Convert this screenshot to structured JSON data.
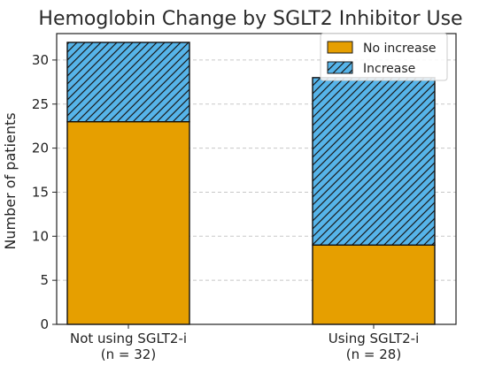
{
  "chart_data": {
    "type": "bar",
    "stacked": true,
    "title": "Hemoglobin Change by SGLT2 Inhibitor Use",
    "xlabel": "",
    "ylabel": "Number of patients",
    "categories": [
      [
        "Not using SGLT2-i",
        "(n = 32)"
      ],
      [
        "Using SGLT2-i",
        "(n = 28)"
      ]
    ],
    "series": [
      {
        "name": "No increase",
        "values": [
          23,
          9
        ],
        "color": "#E69F00",
        "pattern": "solid"
      },
      {
        "name": "Increase",
        "values": [
          9,
          19
        ],
        "color": "#56B4E9",
        "pattern": "diagonal-hatch"
      }
    ],
    "ylim": [
      0,
      33
    ],
    "yticks": [
      0,
      5,
      10,
      15,
      20,
      25,
      30
    ],
    "grid": true,
    "legend_position": "top-right"
  }
}
